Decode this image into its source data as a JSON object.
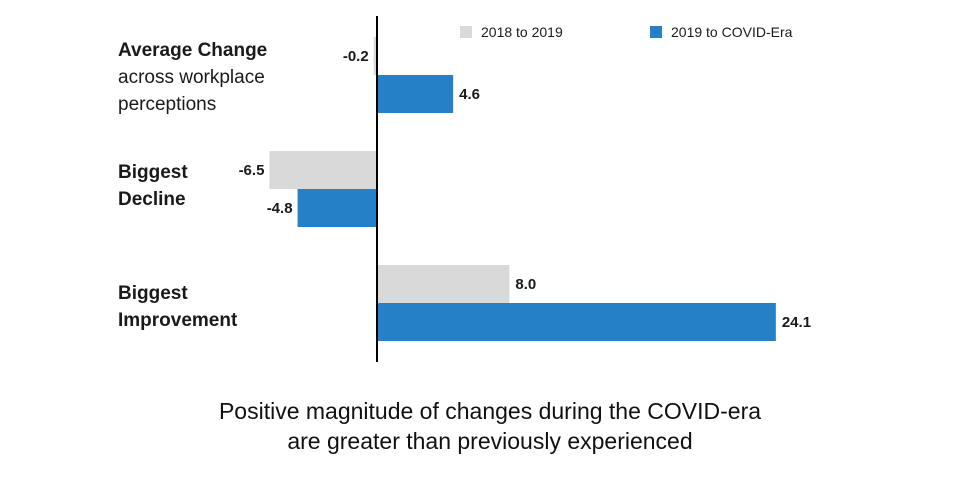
{
  "chart_data": {
    "type": "bar",
    "orientation": "horizontal",
    "categories": [
      {
        "lines": [
          "Average Change",
          "across workplace",
          "perceptions"
        ],
        "bold_lines": 1
      },
      {
        "lines": [
          "Biggest",
          "Decline"
        ],
        "bold_lines": 2
      },
      {
        "lines": [
          "Biggest",
          "Improvement"
        ],
        "bold_lines": 2
      }
    ],
    "series": [
      {
        "name": "2018 to 2019",
        "values": [
          -0.2,
          -6.5,
          8.0
        ],
        "labels": [
          "-0.2",
          "-6.5",
          "8.0"
        ],
        "color": "#d9d9d9"
      },
      {
        "name": "2019 to COVID-Era",
        "values": [
          4.6,
          -4.8,
          24.1
        ],
        "labels": [
          "4.6",
          "-4.8",
          "24.1"
        ],
        "color": "#2680c8"
      }
    ],
    "xlim": [
      -6.5,
      24.1
    ],
    "axis_color": "#000000",
    "legend_position": "top",
    "grid": false
  },
  "caption": {
    "line1": "Positive magnitude of changes during the COVID-era",
    "line2": "are greater than previously experienced"
  }
}
